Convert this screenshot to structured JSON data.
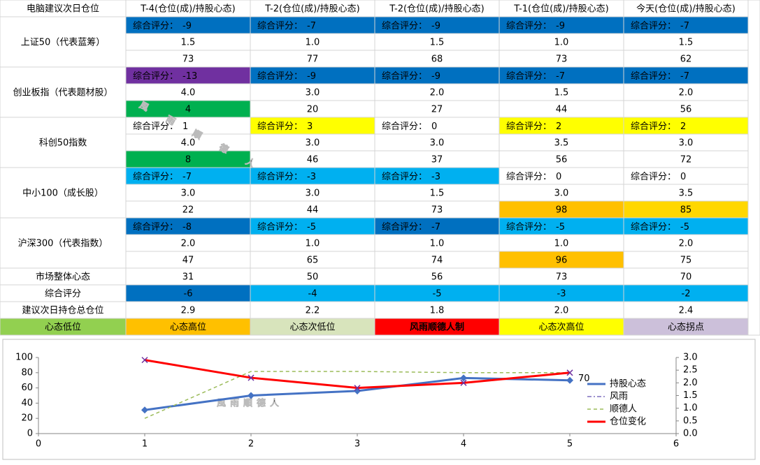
{
  "table": {
    "header": [
      "电脑建议次日仓位",
      "T-4(仓位(成)/持股心态)",
      "T-2(仓位(成)/持股心态)",
      "T-2(仓位(成)/持股心态)",
      "T-1(仓位(成)/持股心态)",
      "今天(仓位(成)/持股心态)"
    ],
    "score_label": "综合评分：",
    "groups": [
      {
        "name": "上证50（代表蓝筹）",
        "scores": [
          {
            "value": -9,
            "fill": "#0070c0"
          },
          {
            "value": -7,
            "fill": "#0070c0"
          },
          {
            "value": -9,
            "fill": "#0070c0"
          },
          {
            "value": -9,
            "fill": "#0070c0"
          },
          {
            "value": -7,
            "fill": "#0070c0"
          }
        ],
        "positions": [
          "1.5",
          "1.0",
          "1.5",
          "1.0",
          "1.5"
        ],
        "moods": [
          {
            "value": 73
          },
          {
            "value": 77
          },
          {
            "value": 68
          },
          {
            "value": 73
          },
          {
            "value": 62
          }
        ]
      },
      {
        "name": "创业板指（代表题材股）",
        "scores": [
          {
            "value": -13,
            "fill": "#7030a0"
          },
          {
            "value": -9,
            "fill": "#0070c0"
          },
          {
            "value": -9,
            "fill": "#0070c0"
          },
          {
            "value": -7,
            "fill": "#0070c0"
          },
          {
            "value": -7,
            "fill": "#0070c0"
          }
        ],
        "positions": [
          "4.0",
          "3.0",
          "2.0",
          "1.5",
          "2.0"
        ],
        "moods": [
          {
            "value": 4,
            "fill": "#00b050"
          },
          {
            "value": 20
          },
          {
            "value": 27
          },
          {
            "value": 44
          },
          {
            "value": 56
          }
        ]
      },
      {
        "name": "科创50指数",
        "scores": [
          {
            "value": 1,
            "fill": "#ffffff"
          },
          {
            "value": 3,
            "fill": "#ffff00"
          },
          {
            "value": 0,
            "fill": "#ffffff"
          },
          {
            "value": 2,
            "fill": "#ffff00"
          },
          {
            "value": 2,
            "fill": "#ffff00"
          }
        ],
        "positions": [
          "4.0",
          "3.0",
          "3.0",
          "3.5",
          "3.0"
        ],
        "moods": [
          {
            "value": 8,
            "fill": "#00b050"
          },
          {
            "value": 46
          },
          {
            "value": 37
          },
          {
            "value": 56
          },
          {
            "value": 72
          }
        ]
      },
      {
        "name": "中小100（成长股）",
        "scores": [
          {
            "value": -7,
            "fill": "#00b0f0"
          },
          {
            "value": -3,
            "fill": "#00b0f0"
          },
          {
            "value": -3,
            "fill": "#00b0f0"
          },
          {
            "value": 0,
            "fill": "#ffffff"
          },
          {
            "value": 0,
            "fill": "#ffffff"
          }
        ],
        "positions": [
          "3.0",
          "3.0",
          "1.5",
          "3.0",
          "3.5"
        ],
        "moods": [
          {
            "value": 22
          },
          {
            "value": 44
          },
          {
            "value": 73
          },
          {
            "value": 98,
            "fill": "#ffc000"
          },
          {
            "value": 85,
            "fill": "#ffd700"
          }
        ]
      },
      {
        "name": "沪深300（代表指数）",
        "scores": [
          {
            "value": -8,
            "fill": "#0070c0"
          },
          {
            "value": -5,
            "fill": "#00b0f0"
          },
          {
            "value": -7,
            "fill": "#0070c0"
          },
          {
            "value": -5,
            "fill": "#00b0f0"
          },
          {
            "value": -5,
            "fill": "#00b0f0"
          }
        ],
        "positions": [
          "2.0",
          "1.0",
          "1.0",
          "1.0",
          "2.0"
        ],
        "moods": [
          {
            "value": 47
          },
          {
            "value": 65
          },
          {
            "value": 74
          },
          {
            "value": 96,
            "fill": "#ffc000"
          },
          {
            "value": 75
          }
        ]
      }
    ],
    "summary": [
      {
        "name": "市场整体心态",
        "cells": [
          {
            "value": 31
          },
          {
            "value": 50
          },
          {
            "value": 56
          },
          {
            "value": 73
          },
          {
            "value": 70
          }
        ]
      },
      {
        "name": "综合评分",
        "cells": [
          {
            "value": -6,
            "fill": "#0070c0"
          },
          {
            "value": -4,
            "fill": "#00b0f0"
          },
          {
            "value": -5,
            "fill": "#00b0f0"
          },
          {
            "value": -3,
            "fill": "#00b0f0"
          },
          {
            "value": -2,
            "fill": "#00b0f0"
          }
        ]
      },
      {
        "name": "建议次日持仓总仓位",
        "cells": [
          {
            "value": "2.9"
          },
          {
            "value": "2.2"
          },
          {
            "value": "1.8"
          },
          {
            "value": "2.0"
          },
          {
            "value": "2.4"
          }
        ]
      }
    ],
    "legend": [
      {
        "text": "心态低位",
        "fill": "#92d050"
      },
      {
        "text": "心态高位",
        "fill": "#ffc000"
      },
      {
        "text": "心态次低位",
        "fill": "#d8e4bc"
      },
      {
        "text": "风雨顺德人制",
        "fill": "#ff0000"
      },
      {
        "text": "心态次高位",
        "fill": "#ffff00"
      },
      {
        "text": "心态拐点",
        "fill": "#ccc0da"
      }
    ]
  },
  "watermark": "風雨順德人",
  "chart": {
    "type": "line",
    "x": [
      1,
      2,
      3,
      4,
      5
    ],
    "xlim": [
      0,
      6
    ],
    "xticks": [
      0,
      1,
      2,
      3,
      4,
      5,
      6
    ],
    "ylim": [
      0,
      100
    ],
    "yticks": [
      0,
      20,
      40,
      60,
      80,
      100
    ],
    "y2lim": [
      0,
      3
    ],
    "y2ticks": [
      {
        "value": 0,
        "label": "0.0"
      },
      {
        "value": 0.5,
        "label": "0.5"
      },
      {
        "value": 1,
        "label": "1.0"
      },
      {
        "value": 1.5,
        "label": "1.5"
      },
      {
        "value": 2,
        "label": "2.0"
      },
      {
        "value": 2.5,
        "label": "2.5"
      },
      {
        "value": 3,
        "label": "3.0"
      }
    ],
    "series": [
      {
        "name": "持股心态",
        "color": "#4472c4",
        "values": [
          31,
          50,
          56,
          73,
          70
        ]
      },
      {
        "name": "风雨",
        "color": "#7f6fbf"
      },
      {
        "name": "顺德人",
        "color": "#9bbb59",
        "axis": "y2",
        "values": [
          0.6,
          2.45,
          2.45,
          2.4,
          2.4
        ]
      },
      {
        "name": "仓位变化",
        "color": "#ff0000",
        "axis": "y2",
        "values": [
          2.9,
          2.2,
          1.8,
          2.0,
          2.4
        ]
      }
    ]
  }
}
